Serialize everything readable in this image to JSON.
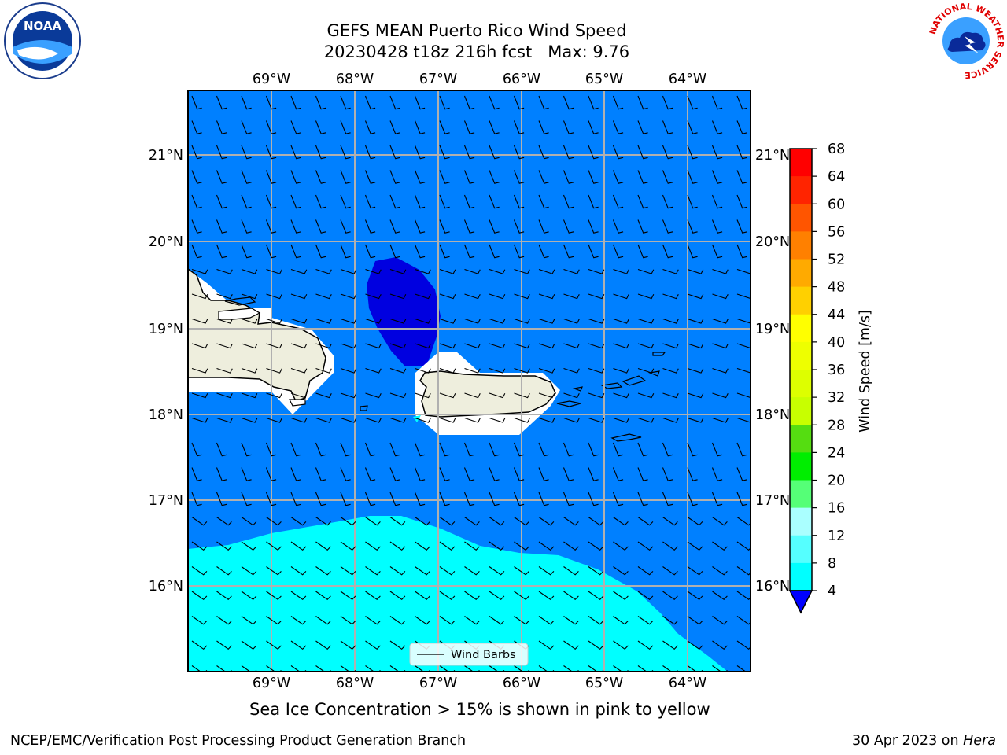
{
  "title": {
    "line1": "GEFS MEAN Puerto Rico Wind Speed",
    "line2": "20230428 t18z 216h fcst   Max: 9.76"
  },
  "logos": {
    "left": "NOAA",
    "right_ring_text": "NATIONAL WEATHER SERVICE"
  },
  "map": {
    "lon_labels": [
      "69°W",
      "68°W",
      "67°W",
      "66°W",
      "65°W",
      "64°W"
    ],
    "lat_labels": [
      "21°N",
      "20°N",
      "19°N",
      "18°N",
      "17°N",
      "16°N"
    ],
    "legend_label": "Wind Barbs",
    "ocean_color": "#0080ff",
    "low_wind_color": "#0000e0",
    "high_wind_color": "#00ffff",
    "land_color": "#eeeedd"
  },
  "colorbar": {
    "label": "Wind Speed [m/s]",
    "ticks": [
      "68",
      "64",
      "60",
      "56",
      "52",
      "48",
      "44",
      "40",
      "36",
      "32",
      "28",
      "24",
      "20",
      "16",
      "12",
      "8",
      "4"
    ],
    "colors": [
      "#ff0000",
      "#ff2400",
      "#ff5500",
      "#ff8000",
      "#ffaa00",
      "#ffd000",
      "#ffff00",
      "#eeff00",
      "#ddff00",
      "#c8ff00",
      "#55dd11",
      "#00ee00",
      "#55ff77",
      "#aaffff",
      "#55ffff",
      "#00ffff",
      "#0080ff"
    ],
    "under_color": "#0000ff"
  },
  "footnote": "Sea Ice Concentration > 15% is shown in pink to yellow",
  "footer": {
    "left": "NCEP/EMC/Verification Post Processing Product Generation Branch",
    "right_prefix": "30 Apr 2023 on ",
    "right_system": "Hera"
  }
}
